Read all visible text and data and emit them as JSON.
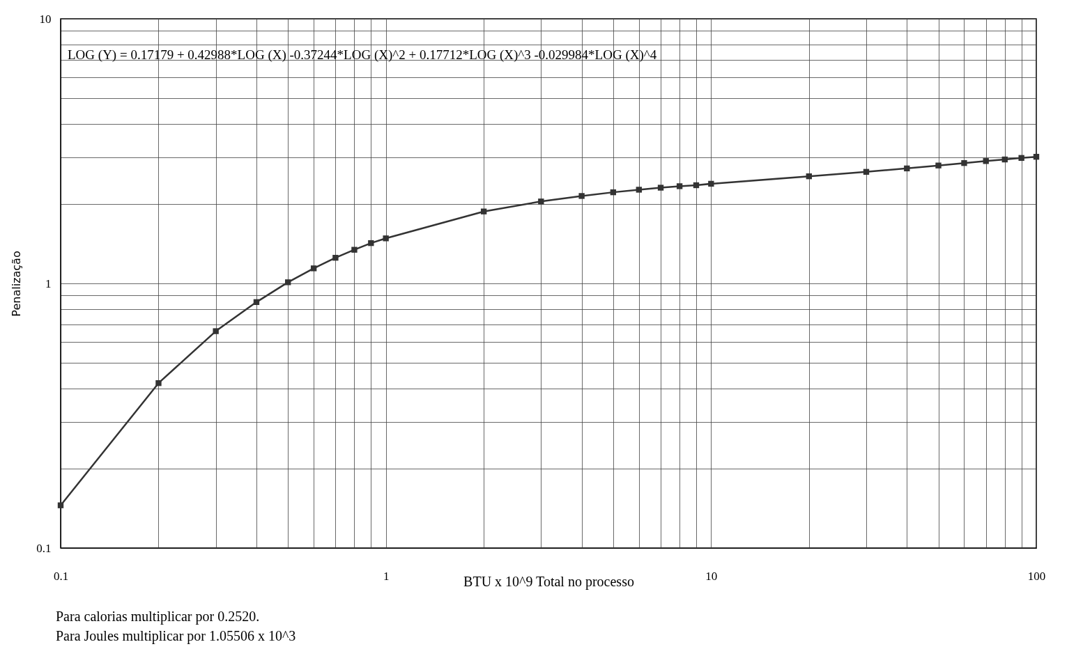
{
  "chart_data": {
    "type": "line",
    "xlabel": "BTU x 10^9 Total no processo",
    "ylabel": "Penalização",
    "log": "xy",
    "grid": true,
    "marker": "square",
    "line_style": "solid",
    "legend": false,
    "x": [
      0.1,
      0.2,
      0.3,
      0.4,
      0.5,
      0.6,
      0.7,
      0.8,
      0.9,
      1,
      2,
      3,
      4,
      5,
      6,
      7,
      8,
      9,
      10,
      20,
      30,
      40,
      50,
      60,
      70,
      80,
      90,
      100
    ],
    "series": [
      {
        "color": "#333333",
        "values": [
          0.145,
          0.42,
          0.66,
          0.85,
          1.01,
          1.14,
          1.25,
          1.34,
          1.42,
          1.48,
          1.87,
          2.04,
          2.14,
          2.21,
          2.26,
          2.3,
          2.33,
          2.35,
          2.38,
          2.54,
          2.64,
          2.72,
          2.79,
          2.85,
          2.9,
          2.94,
          2.98,
          3.01
        ]
      }
    ],
    "xlim": [
      0.1,
      100
    ],
    "ylim": [
      0.1,
      10
    ],
    "xticks": [
      0.1,
      {
        "value": 0.2,
        "label": null
      },
      {
        "value": 0.3,
        "label": null
      },
      {
        "value": 0.4,
        "label": null
      },
      {
        "value": 0.5,
        "label": null
      },
      {
        "value": 0.6,
        "label": null
      },
      {
        "value": 0.7,
        "label": null
      },
      {
        "value": 0.8,
        "label": null
      },
      {
        "value": 0.9,
        "label": null
      },
      1,
      {
        "value": 2,
        "label": null
      },
      {
        "value": 3,
        "label": null
      },
      {
        "value": 4,
        "label": null
      },
      {
        "value": 5,
        "label": null
      },
      {
        "value": 6,
        "label": null
      },
      {
        "value": 7,
        "label": null
      },
      {
        "value": 8,
        "label": null
      },
      {
        "value": 9,
        "label": null
      },
      10,
      {
        "value": 20,
        "label": null
      },
      {
        "value": 30,
        "label": null
      },
      {
        "value": 40,
        "label": null
      },
      {
        "value": 50,
        "label": null
      },
      {
        "value": 60,
        "label": null
      },
      {
        "value": 70,
        "label": null
      },
      {
        "value": 80,
        "label": null
      },
      {
        "value": 90,
        "label": null
      },
      100
    ],
    "yticks": [
      0.1,
      {
        "value": 0.2,
        "label": null
      },
      {
        "value": 0.3,
        "label": null
      },
      {
        "value": 0.4,
        "label": null
      },
      {
        "value": 0.5,
        "label": null
      },
      {
        "value": 0.6,
        "label": null
      },
      {
        "value": 0.7,
        "label": null
      },
      {
        "value": 0.8,
        "label": null
      },
      {
        "value": 0.9,
        "label": null
      },
      1,
      {
        "value": 2,
        "label": null
      },
      {
        "value": 3,
        "label": null
      },
      {
        "value": 4,
        "label": null
      },
      {
        "value": 5,
        "label": null
      },
      {
        "value": 6,
        "label": null
      },
      {
        "value": 7,
        "label": null
      },
      {
        "value": 8,
        "label": null
      },
      {
        "value": 9,
        "label": null
      },
      10
    ],
    "annotations": [
      "LOG (Y) = 0.17179 + 0.42988*LOG (X) -0.37244*LOG (X)^2 + 0.17712*LOG (X)^3 -0.029984*LOG (X)^4",
      "Para calorias multiplicar por 0.2520.",
      "Para Joules multiplicar por 1.05506 x 10^3"
    ]
  }
}
